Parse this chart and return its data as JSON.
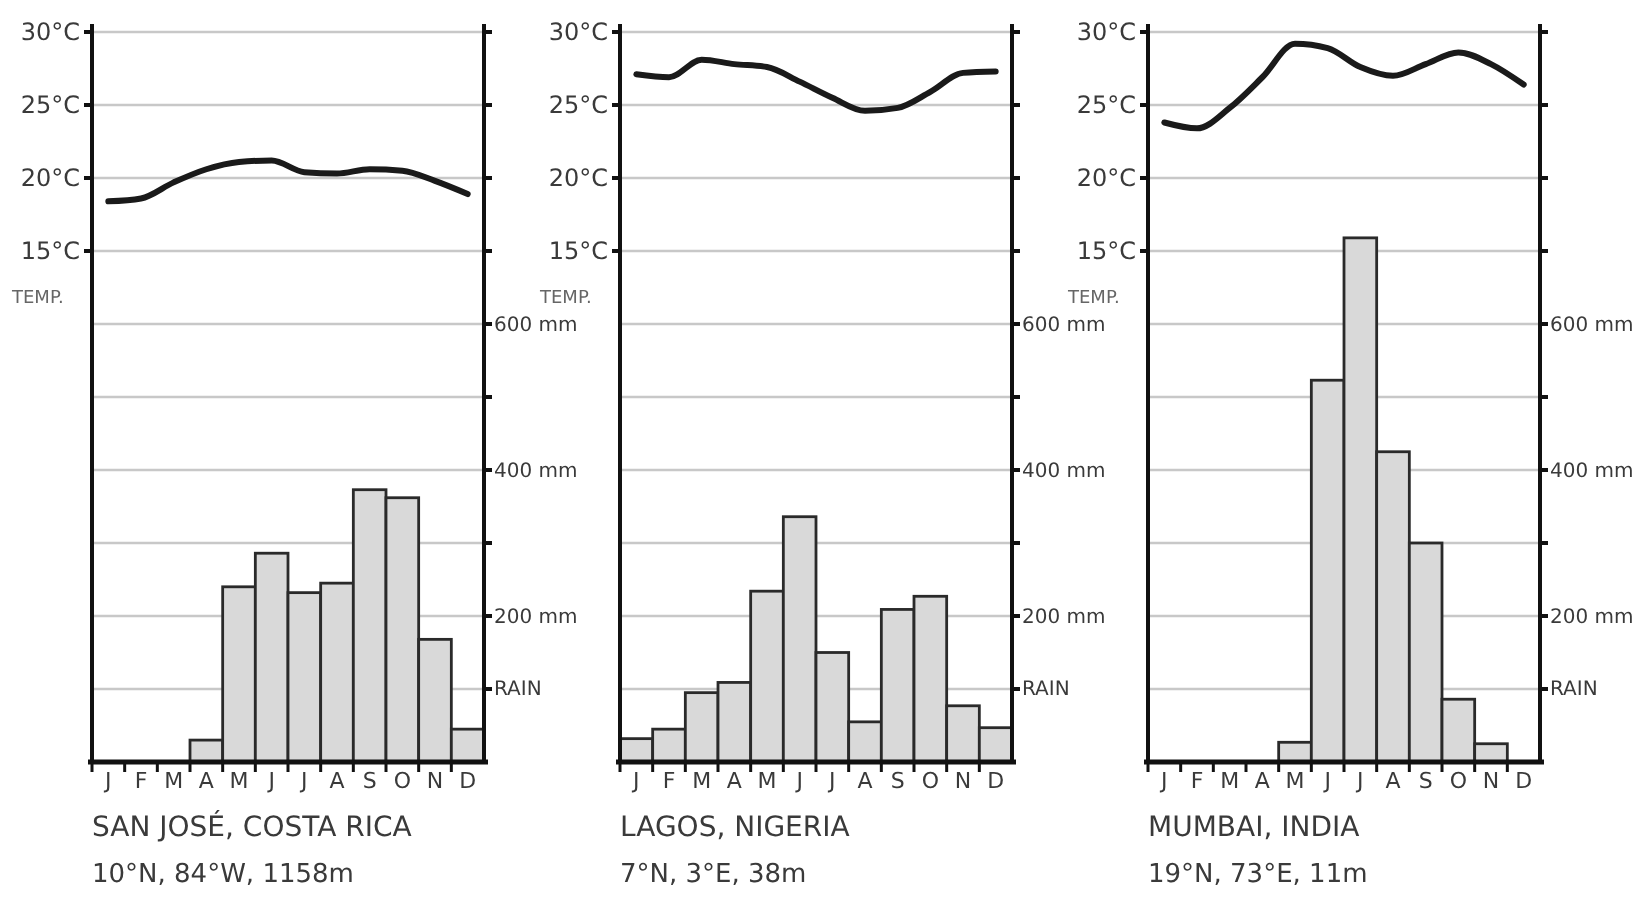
{
  "chart_data": [
    {
      "type": "bar",
      "title": "SAN JOSÉ, COSTA RICA",
      "subtitle": "10°N, 84°W, 1158m",
      "ylabel": "TEMP.",
      "y2label": "RAIN",
      "categories": [
        "J",
        "F",
        "M",
        "A",
        "M",
        "J",
        "J",
        "A",
        "S",
        "O",
        "N",
        "D"
      ],
      "grid": "y",
      "ylim": [
        -20,
        30
      ],
      "yticks": [
        {
          "value": 15,
          "label": "15°C"
        },
        {
          "value": 20,
          "label": "20°C"
        },
        {
          "value": 25,
          "label": "25°C"
        },
        {
          "value": 30,
          "label": "30°C"
        }
      ],
      "y2lim": [
        0,
        1000
      ],
      "y2ticks": [
        {
          "value": 100,
          "label": null
        },
        {
          "value": 200,
          "label": "200 mm"
        },
        {
          "value": 300,
          "label": null
        },
        {
          "value": 400,
          "label": "400 mm"
        },
        {
          "value": 500,
          "label": null
        },
        {
          "value": 600,
          "label": "600 mm"
        },
        {
          "value": 700,
          "label": null
        },
        {
          "value": 800,
          "label": null
        },
        {
          "value": 900,
          "label": null
        },
        {
          "value": 1000,
          "label": null
        }
      ],
      "series": [
        {
          "axis": "y2",
          "color": "#d9d9d9",
          "values": [
            0,
            0,
            0,
            30,
            240,
            286,
            232,
            245,
            373,
            362,
            168,
            45
          ]
        },
        {
          "type": "line",
          "axis": "y",
          "color": "#1a1a1a",
          "marker": "none",
          "values": [
            18.4,
            18.6,
            19.7,
            20.6,
            21.1,
            21.2,
            20.4,
            20.3,
            20.6,
            20.5,
            19.8,
            18.9
          ]
        }
      ]
    },
    {
      "type": "bar",
      "title": "LAGOS, NIGERIA",
      "subtitle": "7°N, 3°E, 38m",
      "ylabel": "TEMP.",
      "y2label": "RAIN",
      "categories": [
        "J",
        "F",
        "M",
        "A",
        "M",
        "J",
        "J",
        "A",
        "S",
        "O",
        "N",
        "D"
      ],
      "grid": "y",
      "ylim": [
        -20,
        30
      ],
      "yticks": [
        {
          "value": 15,
          "label": "15°C"
        },
        {
          "value": 20,
          "label": "20°C"
        },
        {
          "value": 25,
          "label": "25°C"
        },
        {
          "value": 30,
          "label": "30°C"
        }
      ],
      "y2lim": [
        0,
        1000
      ],
      "y2ticks": [
        {
          "value": 100,
          "label": null
        },
        {
          "value": 200,
          "label": "200 mm"
        },
        {
          "value": 300,
          "label": null
        },
        {
          "value": 400,
          "label": "400 mm"
        },
        {
          "value": 500,
          "label": null
        },
        {
          "value": 600,
          "label": "600 mm"
        },
        {
          "value": 700,
          "label": null
        },
        {
          "value": 800,
          "label": null
        },
        {
          "value": 900,
          "label": null
        },
        {
          "value": 1000,
          "label": null
        }
      ],
      "series": [
        {
          "axis": "y2",
          "color": "#d9d9d9",
          "values": [
            32,
            45,
            95,
            109,
            234,
            336,
            150,
            55,
            209,
            227,
            77,
            47
          ]
        },
        {
          "type": "line",
          "axis": "y",
          "color": "#1a1a1a",
          "marker": "none",
          "values": [
            27.1,
            26.9,
            28.1,
            27.8,
            27.6,
            26.6,
            25.5,
            24.6,
            24.8,
            25.9,
            27.2,
            27.3
          ]
        }
      ]
    },
    {
      "type": "bar",
      "title": "MUMBAI, INDIA",
      "subtitle": "19°N, 73°E, 11m",
      "ylabel": "TEMP.",
      "y2label": "RAIN",
      "categories": [
        "J",
        "F",
        "M",
        "A",
        "M",
        "J",
        "J",
        "A",
        "S",
        "O",
        "N",
        "D"
      ],
      "grid": "y",
      "ylim": [
        -20,
        30
      ],
      "yticks": [
        {
          "value": 15,
          "label": "15°C"
        },
        {
          "value": 20,
          "label": "20°C"
        },
        {
          "value": 25,
          "label": "25°C"
        },
        {
          "value": 30,
          "label": "30°C"
        }
      ],
      "y2lim": [
        0,
        1000
      ],
      "y2ticks": [
        {
          "value": 100,
          "label": null
        },
        {
          "value": 200,
          "label": "200 mm"
        },
        {
          "value": 300,
          "label": null
        },
        {
          "value": 400,
          "label": "400 mm"
        },
        {
          "value": 500,
          "label": null
        },
        {
          "value": 600,
          "label": "600 mm"
        },
        {
          "value": 700,
          "label": null
        },
        {
          "value": 800,
          "label": null
        },
        {
          "value": 900,
          "label": null
        },
        {
          "value": 1000,
          "label": null
        }
      ],
      "series": [
        {
          "axis": "y2",
          "color": "#d9d9d9",
          "values": [
            0,
            0,
            0,
            0,
            27,
            523,
            718,
            425,
            300,
            86,
            25,
            0
          ]
        },
        {
          "type": "line",
          "axis": "y",
          "color": "#1a1a1a",
          "marker": "none",
          "values": [
            23.8,
            23.4,
            24.8,
            26.9,
            29.2,
            28.9,
            27.6,
            27.0,
            27.8,
            28.6,
            27.8,
            26.4
          ]
        }
      ]
    }
  ]
}
